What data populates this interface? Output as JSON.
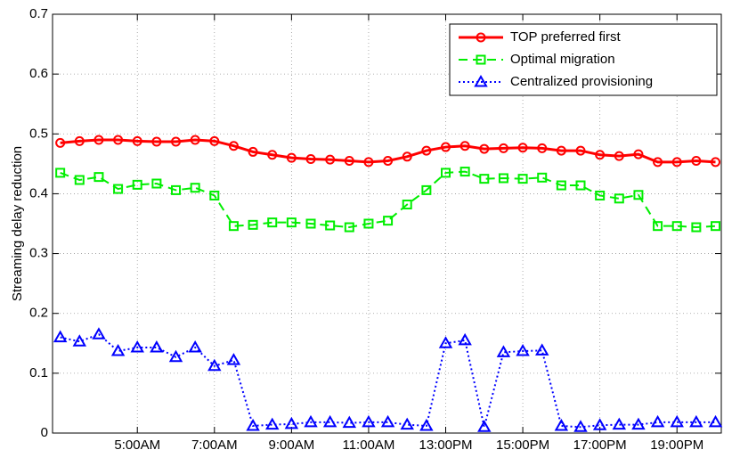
{
  "chart_data": {
    "type": "line",
    "y_label": "Streaming delay reduction",
    "x": [
      3,
      3.5,
      4,
      4.5,
      5,
      5.5,
      6,
      6.5,
      7,
      7.5,
      8,
      8.5,
      9,
      9.5,
      10,
      10.5,
      11,
      11.5,
      12,
      12.5,
      13,
      13.5,
      14,
      14.5,
      15,
      15.5,
      16,
      16.5,
      17,
      17.5,
      18,
      18.5,
      19,
      19.5,
      20
    ],
    "series": [
      {
        "name": "TOP preferred first",
        "color": "#ff0000",
        "marker": "circle",
        "dash": "solid",
        "values": [
          0.485,
          0.488,
          0.49,
          0.49,
          0.488,
          0.487,
          0.487,
          0.49,
          0.488,
          0.48,
          0.47,
          0.465,
          0.46,
          0.458,
          0.457,
          0.455,
          0.453,
          0.455,
          0.462,
          0.472,
          0.478,
          0.48,
          0.475,
          0.476,
          0.477,
          0.476,
          0.472,
          0.472,
          0.465,
          0.463,
          0.466,
          0.453,
          0.453,
          0.455,
          0.453
        ]
      },
      {
        "name": "Optimal migration",
        "color": "#00ee00",
        "marker": "square",
        "dash": "dashed",
        "values": [
          0.435,
          0.423,
          0.428,
          0.408,
          0.415,
          0.417,
          0.406,
          0.41,
          0.397,
          0.346,
          0.348,
          0.352,
          0.352,
          0.35,
          0.347,
          0.344,
          0.35,
          0.355,
          0.382,
          0.406,
          0.435,
          0.437,
          0.425,
          0.426,
          0.425,
          0.427,
          0.414,
          0.414,
          0.397,
          0.392,
          0.398,
          0.346,
          0.346,
          0.344,
          0.346
        ]
      },
      {
        "name": "Centralized provisioning",
        "color": "#0000ff",
        "marker": "triangle",
        "dash": "dotted",
        "values": [
          0.16,
          0.153,
          0.165,
          0.137,
          0.143,
          0.143,
          0.127,
          0.143,
          0.112,
          0.122,
          0.012,
          0.014,
          0.015,
          0.018,
          0.018,
          0.017,
          0.018,
          0.018,
          0.014,
          0.012,
          0.15,
          0.155,
          0.01,
          0.135,
          0.137,
          0.138,
          0.012,
          0.01,
          0.013,
          0.014,
          0.014,
          0.018,
          0.018,
          0.018,
          0.018
        ]
      }
    ],
    "xlim": [
      2.8,
      20.15
    ],
    "xticks": [
      {
        "value": 5,
        "label": "5:00AM"
      },
      {
        "value": 7,
        "label": "7:00AM"
      },
      {
        "value": 9,
        "label": "9:00AM"
      },
      {
        "value": 11,
        "label": "11:00AM"
      },
      {
        "value": 13,
        "label": "13:00PM"
      },
      {
        "value": 15,
        "label": "15:00PM"
      },
      {
        "value": 17,
        "label": "17:00PM"
      },
      {
        "value": 19,
        "label": "19:00PM"
      }
    ],
    "ylim": [
      0,
      0.7
    ],
    "yticks": [
      {
        "value": 0,
        "label": "0"
      },
      0.1,
      0.2,
      0.3,
      0.4,
      0.5,
      0.6,
      0.7
    ],
    "grid": true,
    "legend": "top-right"
  }
}
